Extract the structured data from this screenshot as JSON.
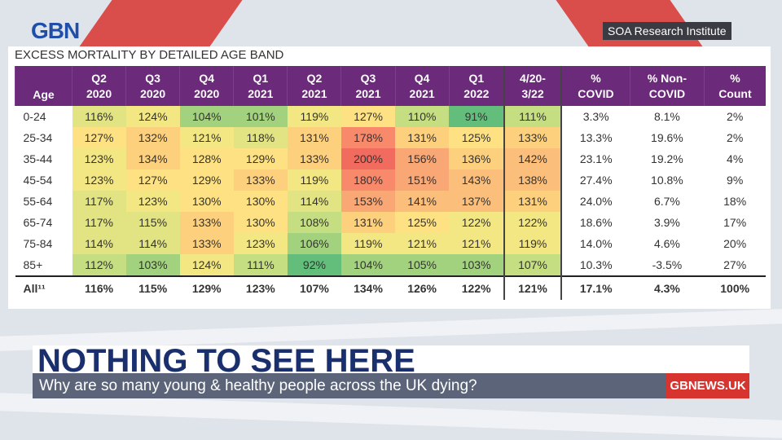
{
  "broadcaster": {
    "logo": "GBN"
  },
  "source_label": "SOA Research Institute",
  "table": {
    "title": "EXCESS MORTALITY BY DETAILED AGE BAND",
    "headers": [
      [
        "Age",
        ""
      ],
      [
        "Q2",
        "2020"
      ],
      [
        "Q3",
        "2020"
      ],
      [
        "Q4",
        "2020"
      ],
      [
        "Q1",
        "2021"
      ],
      [
        "Q2",
        "2021"
      ],
      [
        "Q3",
        "2021"
      ],
      [
        "Q4",
        "2021"
      ],
      [
        "Q1",
        "2022"
      ],
      [
        "4/20-",
        "3/22"
      ],
      [
        "%",
        "COVID"
      ],
      [
        "% Non-",
        "COVID"
      ],
      [
        "%",
        "Count"
      ]
    ],
    "rows": [
      {
        "age": "0-24",
        "vals": [
          "116%",
          "124%",
          "104%",
          "101%",
          "119%",
          "127%",
          "110%",
          "91%",
          "111%"
        ],
        "covid": "3.3%",
        "noncovid": "8.1%",
        "count": "2%"
      },
      {
        "age": "25-34",
        "vals": [
          "127%",
          "132%",
          "121%",
          "118%",
          "131%",
          "178%",
          "131%",
          "125%",
          "133%"
        ],
        "covid": "13.3%",
        "noncovid": "19.6%",
        "count": "2%"
      },
      {
        "age": "35-44",
        "vals": [
          "123%",
          "134%",
          "128%",
          "129%",
          "133%",
          "200%",
          "156%",
          "136%",
          "142%"
        ],
        "covid": "23.1%",
        "noncovid": "19.2%",
        "count": "4%"
      },
      {
        "age": "45-54",
        "vals": [
          "123%",
          "127%",
          "129%",
          "133%",
          "119%",
          "180%",
          "151%",
          "143%",
          "138%"
        ],
        "covid": "27.4%",
        "noncovid": "10.8%",
        "count": "9%"
      },
      {
        "age": "55-64",
        "vals": [
          "117%",
          "123%",
          "130%",
          "130%",
          "114%",
          "153%",
          "141%",
          "137%",
          "131%"
        ],
        "covid": "24.0%",
        "noncovid": "6.7%",
        "count": "18%"
      },
      {
        "age": "65-74",
        "vals": [
          "117%",
          "115%",
          "133%",
          "130%",
          "108%",
          "131%",
          "125%",
          "122%",
          "122%"
        ],
        "covid": "18.6%",
        "noncovid": "3.9%",
        "count": "17%"
      },
      {
        "age": "75-84",
        "vals": [
          "114%",
          "114%",
          "133%",
          "123%",
          "106%",
          "119%",
          "121%",
          "121%",
          "119%"
        ],
        "covid": "14.0%",
        "noncovid": "4.6%",
        "count": "20%"
      },
      {
        "age": "85+",
        "vals": [
          "112%",
          "103%",
          "124%",
          "111%",
          "92%",
          "104%",
          "105%",
          "103%",
          "107%"
        ],
        "covid": "10.3%",
        "noncovid": "-3.5%",
        "count": "27%"
      }
    ],
    "total": {
      "age": "All¹¹",
      "vals": [
        "116%",
        "115%",
        "129%",
        "123%",
        "107%",
        "134%",
        "126%",
        "122%",
        "121%"
      ],
      "covid": "17.1%",
      "noncovid": "4.3%",
      "count": "100%"
    }
  },
  "headline": "NOTHING TO SEE HERE",
  "subheadline": "Why are so many young & healthy people across the UK dying?",
  "brand_tag": "GBNEWS.UK",
  "colors": {
    "header_purple": "#6b2a7a",
    "headline_navy": "#1a2f6e",
    "brand_red": "#d8342f",
    "ticker_grey": "#5b6478"
  }
}
